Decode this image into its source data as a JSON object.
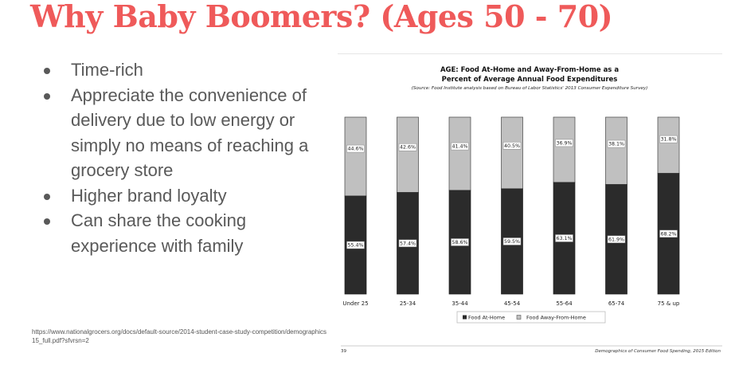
{
  "slide": {
    "title": "Why Baby Boomers? (Ages 50 - 70)",
    "bullets": [
      "Time-rich",
      "Appreciate the convenience of delivery due to low energy or simply no means of reaching a grocery store",
      "Higher brand loyalty",
      "Can share the cooking experience with family"
    ],
    "source_url": "https://www.nationalgrocers.org/docs/default-source/2014-student-case-study-competition/demographics15_full.pdf?sfvrsn=2"
  },
  "chart_data": {
    "type": "bar",
    "stacked": true,
    "title_line1": "AGE: Food At-Home and Away-From-Home as a",
    "title_line2": "Percent of Average Annual Food Expenditures",
    "subtitle": "(Source: Food Institute analysis based on Bureau of Labor Statistics' 2013 Consumer Expenditure Survey)",
    "categories": [
      "Under 25",
      "25-34",
      "35-44",
      "45-54",
      "55-64",
      "65-74",
      "75 & up"
    ],
    "series": [
      {
        "name": "Food At-Home",
        "values": [
          55.4,
          57.4,
          58.6,
          59.5,
          63.1,
          61.9,
          68.2
        ],
        "labels": [
          "55.4%",
          "57.4%",
          "58.6%",
          "59.5%",
          "63.1%",
          "61.9%",
          "68.2%"
        ],
        "color": "#2b2b2b"
      },
      {
        "name": "Food Away-From-Home",
        "values": [
          44.6,
          42.6,
          41.4,
          40.5,
          36.9,
          38.1,
          31.8
        ],
        "labels": [
          "44.6%",
          "42.6%",
          "41.4%",
          "40.5%",
          "36.9%",
          "38.1%",
          "31.8%"
        ],
        "color": "#c0c0c0"
      }
    ],
    "ylim": [
      0,
      100
    ],
    "legend_position": "bottom",
    "page_number": "39",
    "footer": "Demographics of Consumer Food Spending, 2015 Edition"
  }
}
